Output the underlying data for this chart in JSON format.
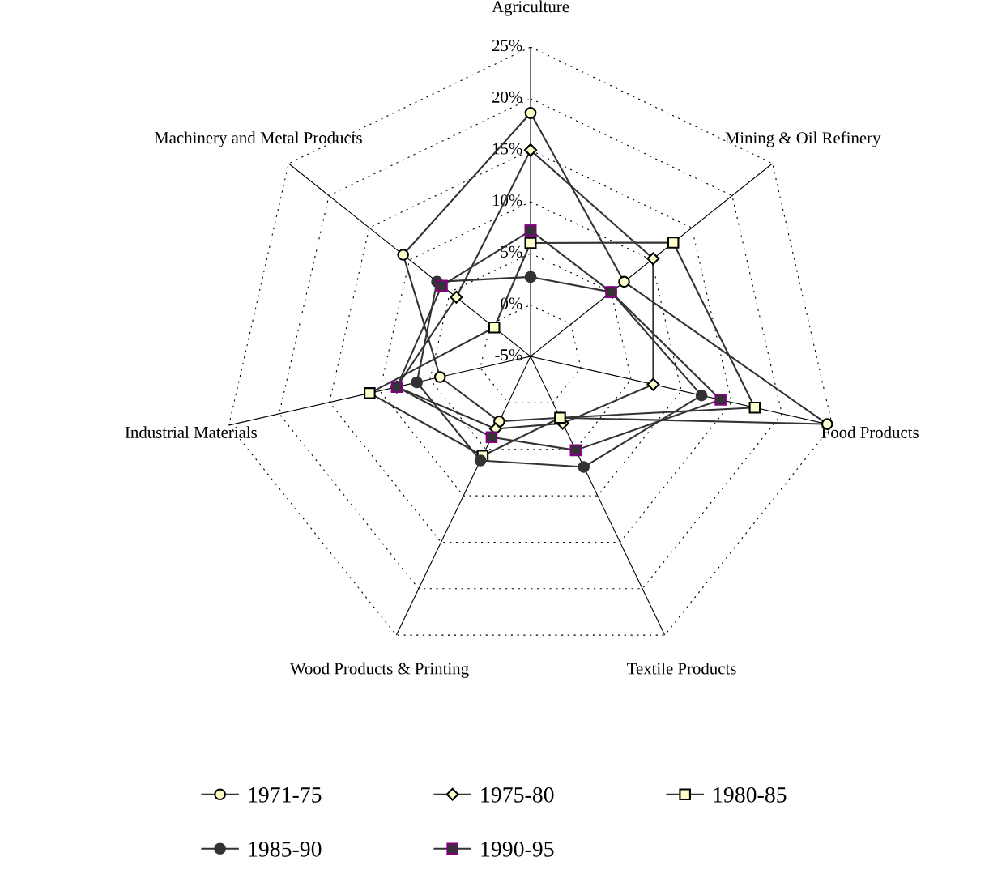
{
  "chart_data": {
    "type": "radar",
    "categories": [
      "Agriculture",
      "Mining & Oil Refinery",
      "Food Products",
      "Textile Products",
      "Wood Products & Printing",
      "Industrial Materials",
      "Machinery and Metal Products"
    ],
    "ylim": [
      -5,
      25
    ],
    "yticks": [
      {
        "value": -5,
        "label": "-5%"
      },
      {
        "value": 0,
        "label": "0%"
      },
      {
        "value": 5,
        "label": "5%"
      },
      {
        "value": 10,
        "label": "10%"
      },
      {
        "value": 15,
        "label": "15%"
      },
      {
        "value": 20,
        "label": "20%"
      },
      {
        "value": 25,
        "label": "25%"
      }
    ],
    "grid": true,
    "legend": "bottom",
    "line_style": "solid",
    "series": [
      {
        "name": "1971-75",
        "color": "#333333",
        "marker": "circle",
        "values": [
          18.6,
          6.6,
          24.5,
          1.6,
          2.0,
          4.0,
          10.8
        ]
      },
      {
        "name": "1975-80",
        "color": "#333333",
        "marker": "diamond",
        "values": [
          15.0,
          10.2,
          7.2,
          2.2,
          2.8,
          8.3,
          4.2
        ]
      },
      {
        "name": "1980-85",
        "color": "#333333",
        "marker": "square",
        "values": [
          6.0,
          12.7,
          17.3,
          1.6,
          5.7,
          11.0,
          -0.5
        ]
      },
      {
        "name": "1985-90",
        "color": "#333333",
        "marker": "circle",
        "values": [
          2.7,
          5.0,
          12.0,
          6.9,
          6.2,
          6.3,
          6.6
        ]
      },
      {
        "name": "1990-95",
        "color": "#333333",
        "marker": "square",
        "values": [
          7.2,
          5.0,
          13.9,
          5.1,
          3.7,
          8.3,
          6.0
        ]
      }
    ]
  }
}
